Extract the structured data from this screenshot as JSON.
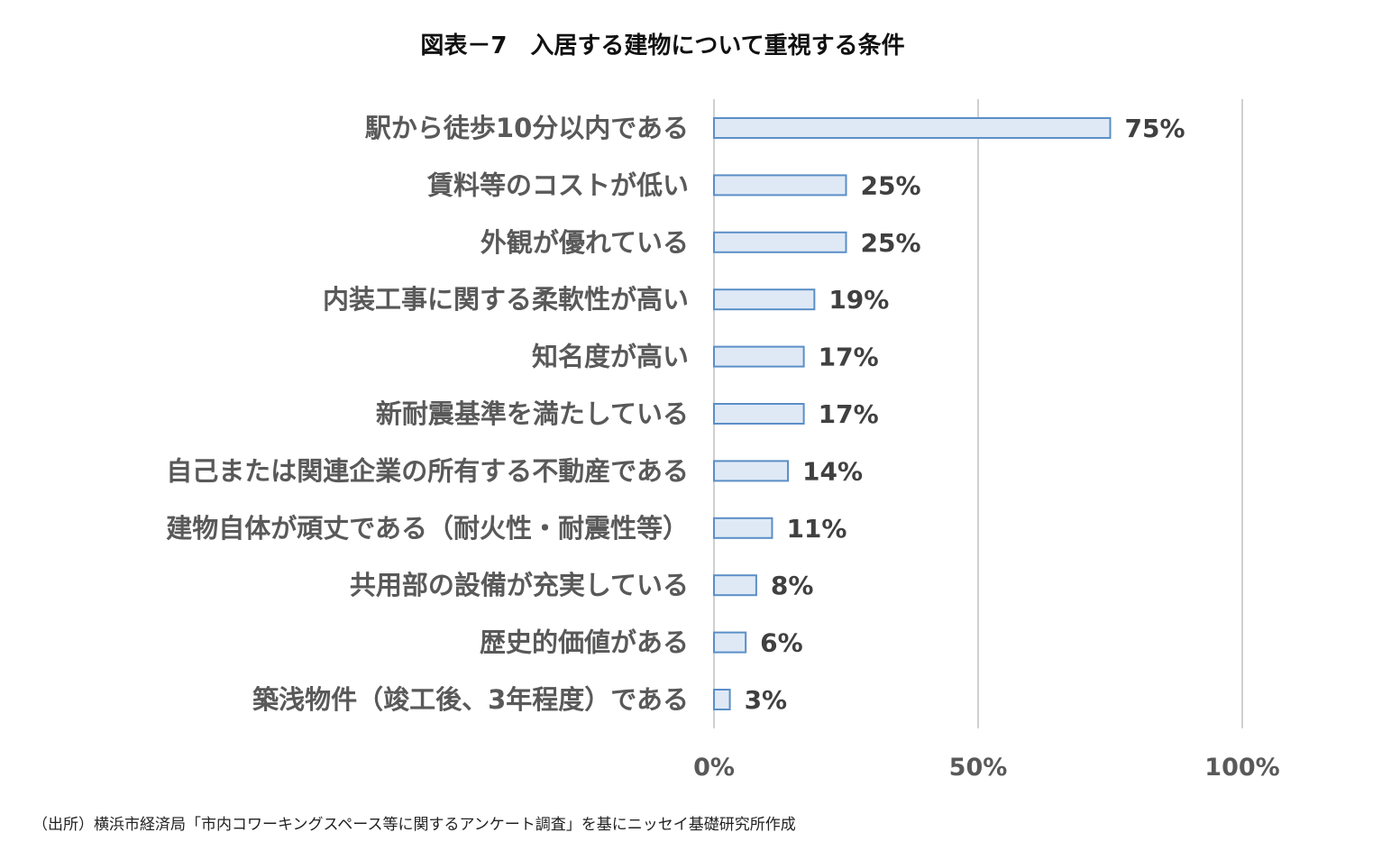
{
  "chart_data": {
    "type": "bar",
    "orientation": "horizontal",
    "title": "図表－7　入居する建物について重視する条件",
    "categories": [
      "駅から徒歩10分以内である",
      "賃料等のコストが低い",
      "外観が優れている",
      "内装工事に関する柔軟性が高い",
      "知名度が高い",
      "新耐震基準を満たしている",
      "自己または関連企業の所有する不動産である",
      "建物自体が頑丈である（耐火性・耐震性等）",
      "共用部の設備が充実している",
      "歴史的価値がある",
      "築浅物件（竣工後、3年程度）である"
    ],
    "values": [
      75,
      25,
      25,
      19,
      17,
      17,
      14,
      11,
      8,
      6,
      3
    ],
    "value_labels": [
      "75%",
      "25%",
      "25%",
      "19%",
      "17%",
      "17%",
      "14%",
      "11%",
      "8%",
      "6%",
      "3%"
    ],
    "xlim": [
      0,
      100
    ],
    "x_ticks": [
      0,
      50,
      100
    ],
    "x_tick_labels": [
      "0%",
      "50%",
      "100%"
    ],
    "grid": "vertical",
    "legend": "none",
    "colors": {
      "bar_fill": "#dfe9f6",
      "bar_stroke": "#5b8fc7",
      "grid": "#d0d0d0"
    }
  },
  "source_note": "（出所）横浜市経済局「市内コワーキングスペース等に関するアンケート調査」を基にニッセイ基礎研究所作成"
}
